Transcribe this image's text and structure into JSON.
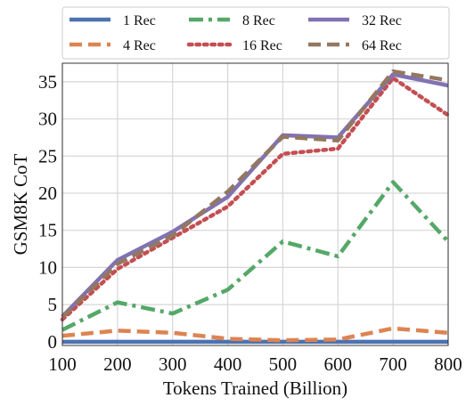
{
  "chart_data": {
    "type": "line",
    "title": "",
    "xlabel": "Tokens Trained (Billion)",
    "ylabel": "GSM8K CoT",
    "x": [
      100,
      200,
      300,
      400,
      500,
      600,
      700,
      800
    ],
    "xlim": [
      100,
      800
    ],
    "ylim": [
      -0.5,
      37.5
    ],
    "xticks": [
      "100",
      "200",
      "300",
      "400",
      "500",
      "600",
      "700",
      "800"
    ],
    "yticks": [
      "0",
      "5",
      "10",
      "15",
      "20",
      "25",
      "30",
      "35"
    ],
    "grid": true,
    "legend_position": "top",
    "series": [
      {
        "name": "1 Rec",
        "values": [
          0,
          0,
          0,
          0,
          0,
          0,
          0,
          0
        ],
        "color": "#4c72b0",
        "dash": "solid"
      },
      {
        "name": "4 Rec",
        "values": [
          0.8,
          1.5,
          1.2,
          0.4,
          0.2,
          0.3,
          1.8,
          1.2
        ],
        "color": "#dd8452",
        "dash": "dashed"
      },
      {
        "name": "8 Rec",
        "values": [
          1.6,
          5.3,
          3.8,
          7.0,
          13.5,
          11.5,
          21.5,
          13.5
        ],
        "color": "#55a868",
        "dash": "dashdot"
      },
      {
        "name": "16 Rec",
        "values": [
          3.0,
          9.8,
          14.0,
          18.2,
          25.3,
          26.0,
          35.5,
          30.5
        ],
        "color": "#c44e52",
        "dash": "dotted"
      },
      {
        "name": "32 Rec",
        "values": [
          3.4,
          11.0,
          14.8,
          19.5,
          27.8,
          27.5,
          36.0,
          34.5
        ],
        "color": "#8172b3",
        "dash": "solid"
      },
      {
        "name": "64 Rec",
        "values": [
          3.3,
          10.5,
          14.3,
          20.2,
          27.6,
          27.1,
          36.4,
          35.2
        ],
        "color": "#937860",
        "dash": "dashed"
      }
    ]
  }
}
